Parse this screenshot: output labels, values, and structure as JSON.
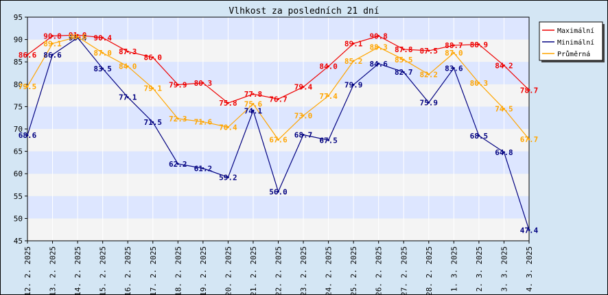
{
  "chart_data": {
    "type": "line",
    "title": "Vlhkost za posledních 21 dní",
    "xlabel": "",
    "ylabel": "",
    "ylim": [
      45,
      95
    ],
    "yticks": [
      45,
      50,
      55,
      60,
      65,
      70,
      75,
      80,
      85,
      90,
      95
    ],
    "grid": true,
    "legend_position": "top-right",
    "categories": [
      "12. 2. 2025",
      "13. 2. 2025",
      "14. 2. 2025",
      "15. 2. 2025",
      "16. 2. 2025",
      "17. 2. 2025",
      "18. 2. 2025",
      "19. 2. 2025",
      "20. 2. 2025",
      "21. 2. 2025",
      "22. 2. 2025",
      "23. 2. 2025",
      "24. 2. 2025",
      "25. 2. 2025",
      "26. 2. 2025",
      "27. 2. 2025",
      "28. 2. 2025",
      "1. 3. 2025",
      "2. 3. 2025",
      "3. 3. 2025",
      "4. 3. 2025"
    ],
    "series": [
      {
        "name": "Maximální",
        "color": "#ee0000",
        "values": [
          86.6,
          90.8,
          91.0,
          90.4,
          87.3,
          86.0,
          79.9,
          80.3,
          75.8,
          77.8,
          76.7,
          79.4,
          84.0,
          89.1,
          90.8,
          87.8,
          87.5,
          88.7,
          88.9,
          84.2,
          78.7
        ]
      },
      {
        "name": "Minimální",
        "color": "#000080",
        "values": [
          68.6,
          86.6,
          90.4,
          83.5,
          77.1,
          71.5,
          62.2,
          61.2,
          59.2,
          74.1,
          56.0,
          68.7,
          67.5,
          79.9,
          84.6,
          82.7,
          75.9,
          83.6,
          68.5,
          64.8,
          47.4
        ]
      },
      {
        "name": "Průměrná",
        "color": "#ffa500",
        "values": [
          79.5,
          89.1,
          90.6,
          87.0,
          84.0,
          79.1,
          72.3,
          71.6,
          70.4,
          75.6,
          67.6,
          73.0,
          77.4,
          85.2,
          88.3,
          85.5,
          82.2,
          87.0,
          80.3,
          74.5,
          67.7
        ]
      }
    ]
  }
}
